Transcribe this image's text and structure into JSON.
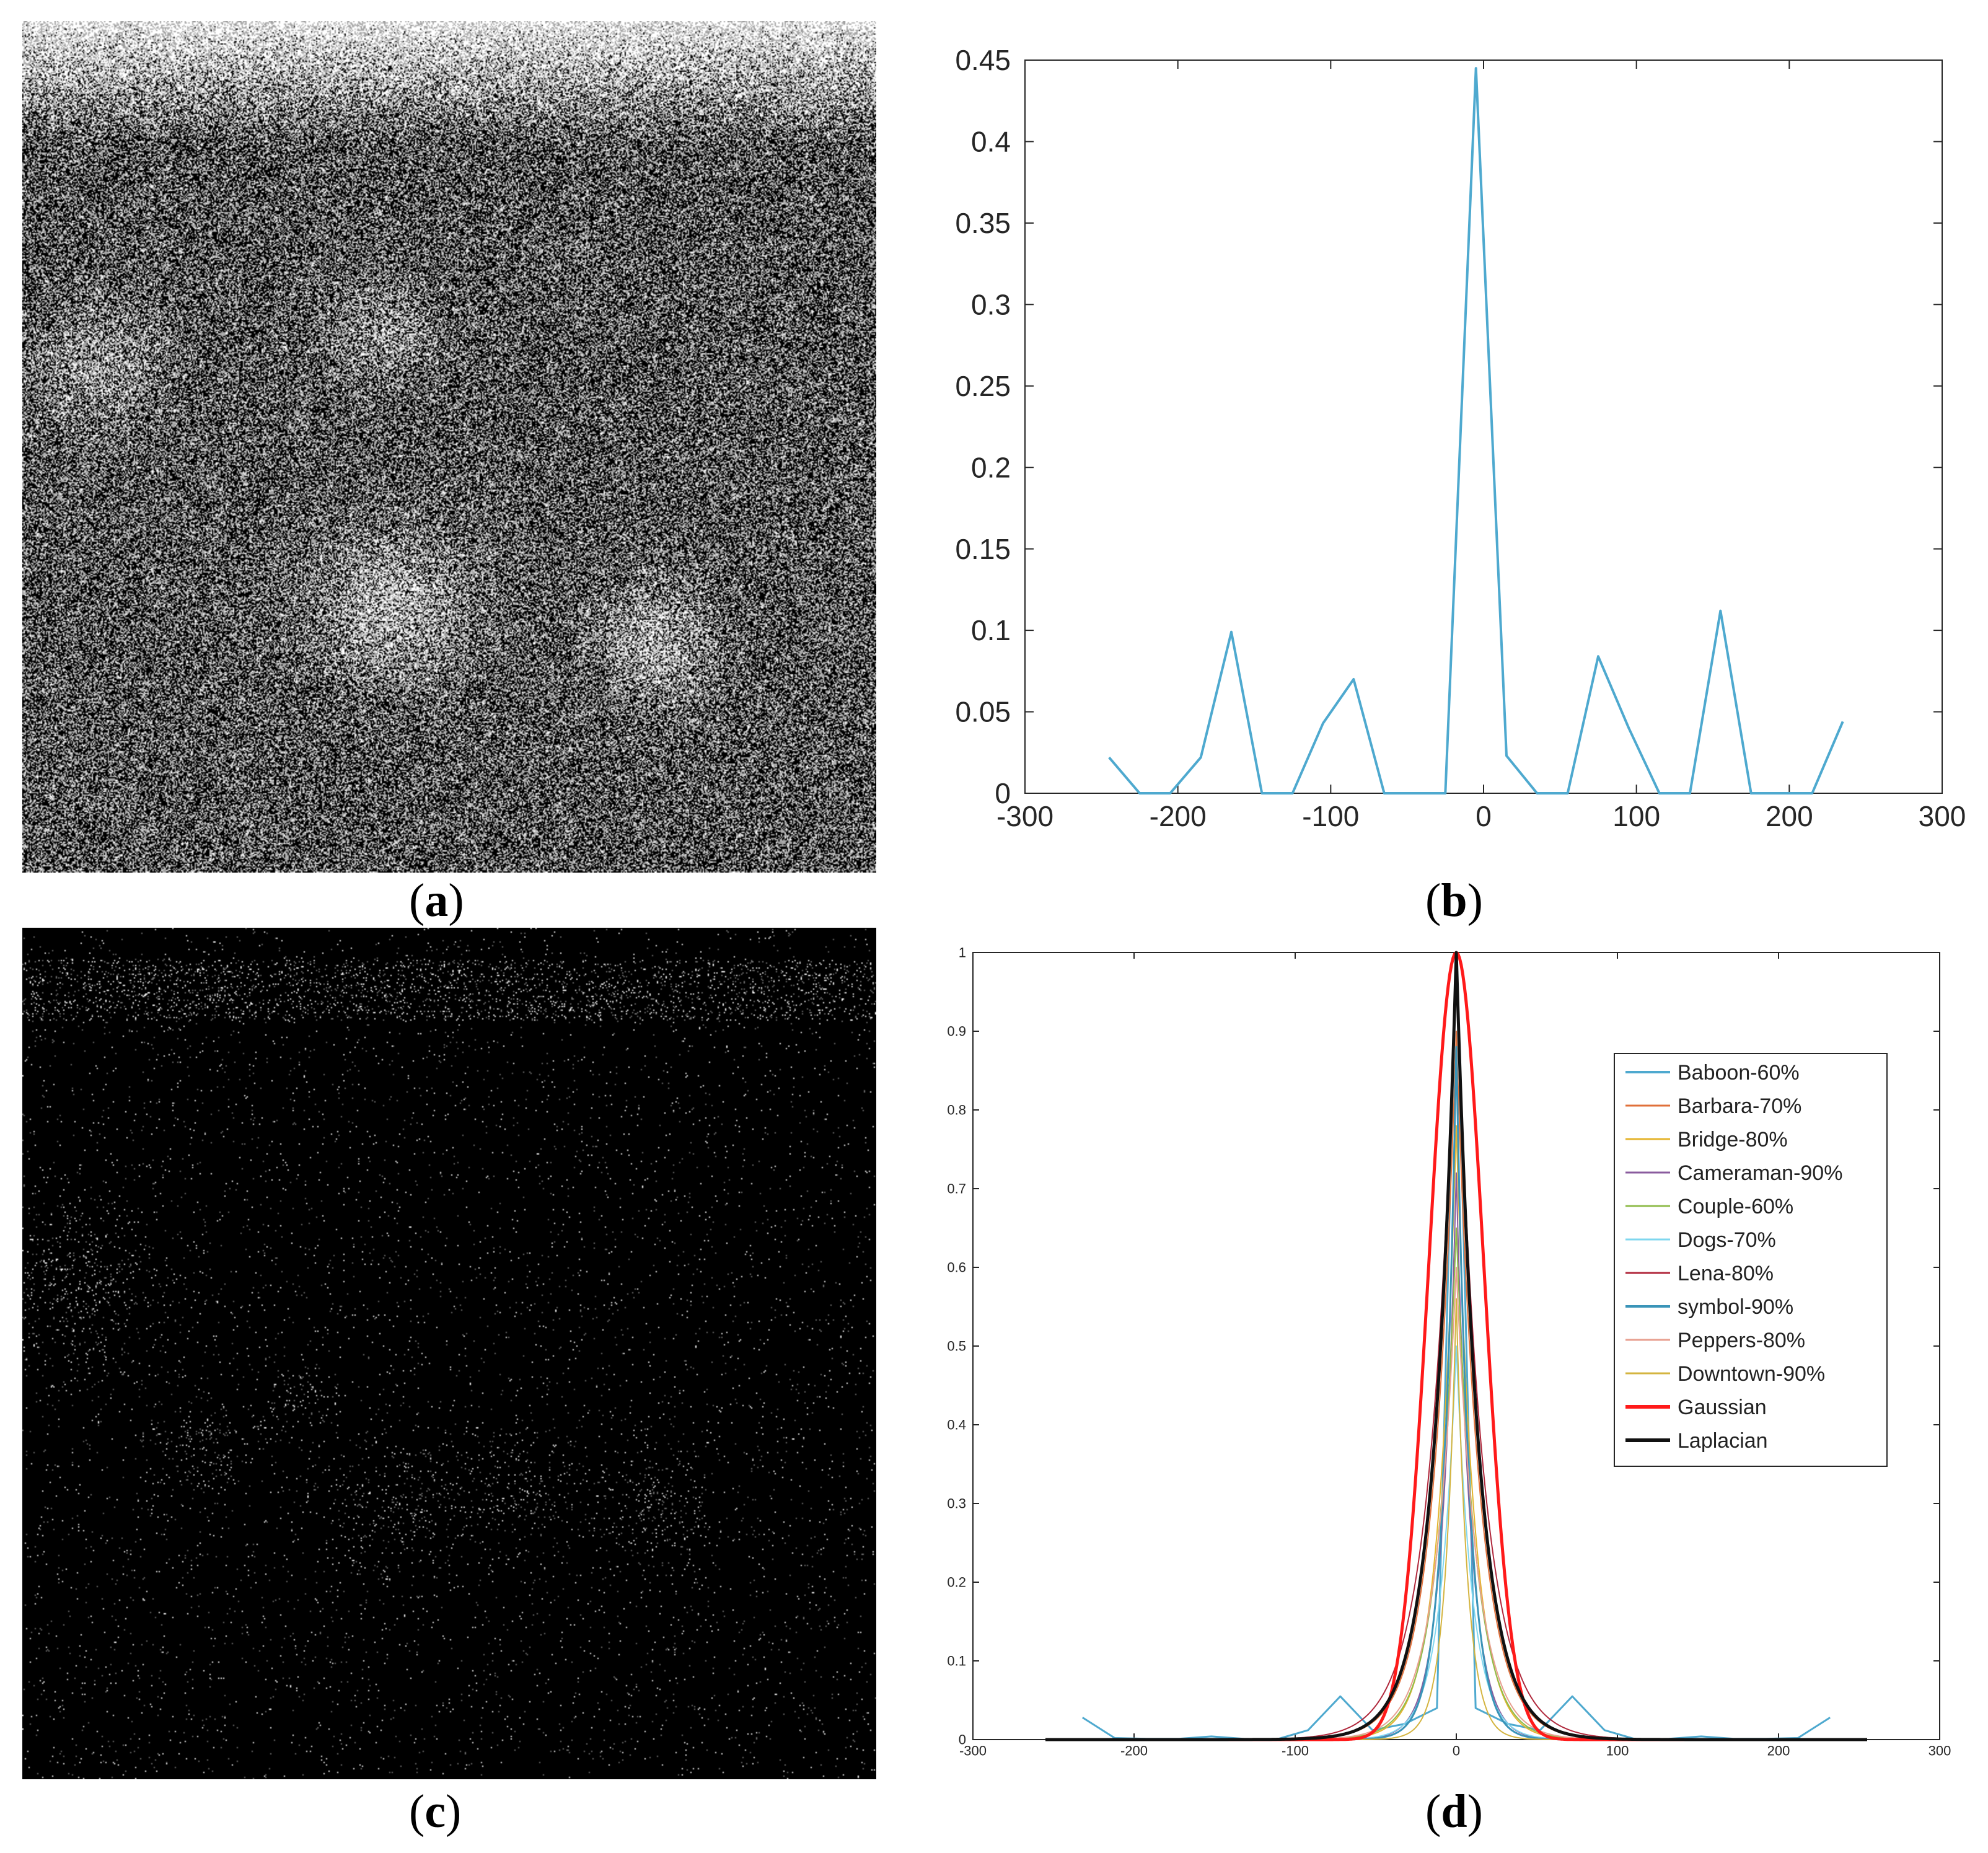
{
  "captions": {
    "a": [
      "(",
      "a",
      ")"
    ],
    "b": [
      "(",
      "b",
      ")"
    ],
    "c": [
      "(",
      "c",
      ")"
    ],
    "d": [
      "(",
      "d",
      ")"
    ]
  },
  "colors": {
    "background": "#ffffff",
    "axis": "#262626",
    "blue": "#4ea9cf"
  },
  "chart_data": [
    {
      "panel": "b",
      "type": "line",
      "title": "",
      "xlabel": "",
      "ylabel": "",
      "xlim": [
        -300,
        300
      ],
      "ylim": [
        0,
        0.45
      ],
      "xticks": [
        -300,
        -200,
        -100,
        0,
        100,
        200,
        300
      ],
      "xticklabels": [
        "-300",
        "-200",
        "-100",
        "0",
        "100",
        "200",
        "300"
      ],
      "yticks": [
        0,
        0.05,
        0.1,
        0.15,
        0.2,
        0.25,
        0.3,
        0.35,
        0.4,
        0.45
      ],
      "yticklabels": [
        "0",
        "0.05",
        "0.1",
        "0.15",
        "0.2",
        "0.25",
        "0.3",
        "0.35",
        "0.4",
        "0.45"
      ],
      "grid": false,
      "series": [
        {
          "color": "#4ea9cf",
          "x": [
            -245,
            -225,
            -205,
            -185,
            -165,
            -145,
            -125,
            -105,
            -85,
            -65,
            -45,
            -25,
            -5,
            15,
            35,
            55,
            75,
            95,
            115,
            135,
            155,
            175,
            195,
            215,
            235
          ],
          "y": [
            0.022,
            0.0,
            0.0,
            0.022,
            0.099,
            0.0,
            0.0,
            0.043,
            0.07,
            0.0,
            0.0,
            0.0,
            0.445,
            0.023,
            0.0,
            0.0,
            0.084,
            0.04,
            0.0,
            0.0,
            0.112,
            0.0,
            0.0,
            0.0,
            0.044
          ]
        }
      ]
    },
    {
      "panel": "d",
      "type": "line",
      "title": "",
      "xlabel": "",
      "ylabel": "",
      "xlim": [
        -300,
        300
      ],
      "ylim": [
        0,
        1
      ],
      "xticks": [
        -300,
        -200,
        -100,
        0,
        100,
        200,
        300
      ],
      "xticklabels": [
        "-300",
        "-200",
        "-100",
        "0",
        "100",
        "200",
        "300"
      ],
      "yticks": [
        0,
        0.1,
        0.2,
        0.3,
        0.4,
        0.5,
        0.6,
        0.7,
        0.8,
        0.9,
        1
      ],
      "yticklabels": [
        "0",
        "0.1",
        "0.2",
        "0.3",
        "0.4",
        "0.5",
        "0.6",
        "0.7",
        "0.8",
        "0.9",
        "1"
      ],
      "grid": false,
      "legend_position": "top-right",
      "series": [
        {
          "name": "Baboon-60%",
          "color": "#4ea9cf",
          "width": 3,
          "x": [
            -232,
            -212,
            -192,
            -172,
            -152,
            -132,
            -112,
            -92,
            -72,
            -52,
            -32,
            -12,
            0,
            12,
            32,
            52,
            72,
            92,
            112,
            132,
            152,
            172,
            192,
            212,
            232
          ],
          "y": [
            0.028,
            0.002,
            0.001,
            0.001,
            0.004,
            0.001,
            0.0,
            0.012,
            0.055,
            0.012,
            0.02,
            0.04,
            1.0,
            0.04,
            0.02,
            0.012,
            0.055,
            0.012,
            0.0,
            0.001,
            0.004,
            0.001,
            0.001,
            0.002,
            0.028
          ]
        },
        {
          "name": "Barbara-70%",
          "color": "#e0703a",
          "width": 2,
          "shape": "peak",
          "peak": 0.9,
          "scale": 14
        },
        {
          "name": "Bridge-80%",
          "color": "#e4b42e",
          "width": 2,
          "shape": "peak",
          "peak": 0.78,
          "scale": 11
        },
        {
          "name": "Cameraman-90%",
          "color": "#8a5b9e",
          "width": 2,
          "shape": "peak",
          "peak": 0.72,
          "scale": 9
        },
        {
          "name": "Couple-60%",
          "color": "#8fbc4a",
          "width": 2,
          "shape": "peak",
          "peak": 0.65,
          "scale": 12
        },
        {
          "name": "Dogs-70%",
          "color": "#7fd7ef",
          "width": 2,
          "shape": "peak",
          "peak": 0.5,
          "scale": 10
        },
        {
          "name": "Lena-80%",
          "color": "#b0283c",
          "width": 2,
          "shape": "peak",
          "peak": 0.98,
          "scale": 16
        },
        {
          "name": "symbol-90%",
          "color": "#3a94b8",
          "width": 3,
          "shape": "peak",
          "peak": 0.88,
          "scale": 8
        },
        {
          "name": "Peppers-80%",
          "color": "#e8a090",
          "width": 2,
          "shape": "peak",
          "peak": 0.6,
          "scale": 13
        },
        {
          "name": "Downtown-90%",
          "color": "#d4b440",
          "width": 2,
          "shape": "peak",
          "peak": 0.56,
          "scale": 7
        },
        {
          "name": "Gaussian",
          "color": "#ff1a1a",
          "width": 5,
          "shape": "gaussian",
          "peak": 1.0,
          "sigma": 17
        },
        {
          "name": "Laplacian",
          "color": "#111111",
          "width": 5,
          "shape": "laplace",
          "peak": 1.0,
          "b": 14
        }
      ]
    }
  ]
}
